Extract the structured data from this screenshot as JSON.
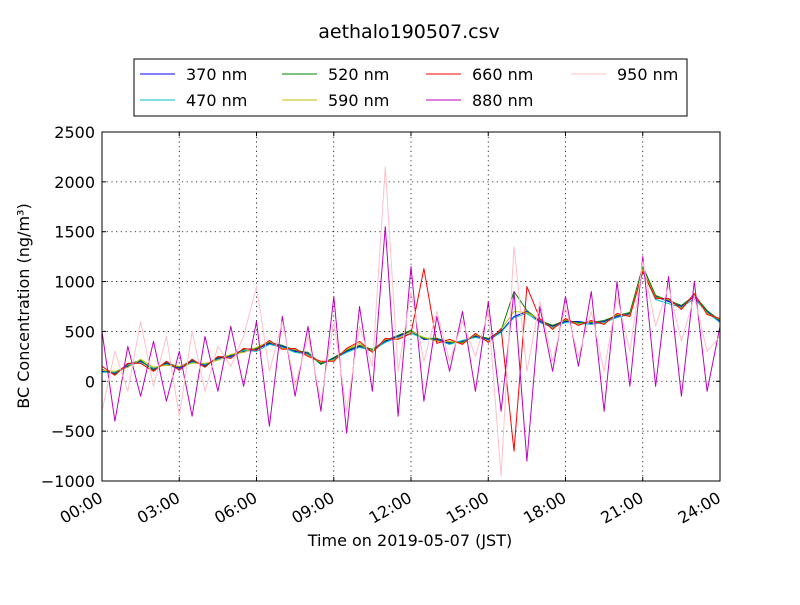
{
  "chart_data": {
    "type": "line",
    "title": "aethalo190507.csv",
    "xlabel": "Time on 2019-05-07 (JST)",
    "ylabel": "BC Concentration (ng/m³)",
    "xlim": [
      0,
      24
    ],
    "ylim": [
      -1000,
      2500
    ],
    "x_unit": "hours",
    "xticks": [
      0,
      3,
      6,
      9,
      12,
      15,
      18,
      21,
      24
    ],
    "xtick_labels": [
      "00:00",
      "03:00",
      "06:00",
      "09:00",
      "12:00",
      "15:00",
      "18:00",
      "21:00",
      "24:00"
    ],
    "yticks": [
      -1000,
      -500,
      0,
      500,
      1000,
      1500,
      2000,
      2500
    ],
    "ytick_labels": [
      "−1000",
      "−500",
      "0",
      "500",
      "1000",
      "1500",
      "2000",
      "2500"
    ],
    "grid": true,
    "legend_position": "top",
    "series": [
      {
        "name": "370 nm",
        "color": "#0000ff",
        "x": [
          0,
          0.5,
          1,
          1.5,
          2,
          2.5,
          3,
          3.5,
          4,
          4.5,
          5,
          5.5,
          6,
          6.5,
          7,
          7.5,
          8,
          8.5,
          9,
          9.5,
          10,
          10.5,
          11,
          11.5,
          12,
          12.5,
          13,
          13.5,
          14,
          14.5,
          15,
          15.5,
          16,
          16.5,
          17,
          17.5,
          18,
          18.5,
          19,
          19.5,
          20,
          20.5,
          21,
          21.5,
          22,
          22.5,
          23,
          23.5,
          24
        ],
        "y": [
          100,
          80,
          150,
          200,
          120,
          180,
          130,
          200,
          160,
          230,
          250,
          300,
          320,
          380,
          350,
          300,
          280,
          180,
          230,
          300,
          350,
          300,
          400,
          450,
          500,
          420,
          420,
          380,
          400,
          450,
          420,
          500,
          650,
          700,
          600,
          550,
          600,
          600,
          580,
          600,
          650,
          680,
          1150,
          850,
          800,
          750,
          850,
          700,
          600
        ]
      },
      {
        "name": "470 nm",
        "color": "#00c0c0",
        "x": [
          0,
          0.5,
          1,
          1.5,
          2,
          2.5,
          3,
          3.5,
          4,
          4.5,
          5,
          5.5,
          6,
          6.5,
          7,
          7.5,
          8,
          8.5,
          9,
          9.5,
          10,
          10.5,
          11,
          11.5,
          12,
          12.5,
          13,
          13.5,
          14,
          14.5,
          15,
          15.5,
          16,
          16.5,
          17,
          17.5,
          18,
          18.5,
          19,
          19.5,
          20,
          20.5,
          21,
          21.5,
          22,
          22.5,
          23,
          23.5,
          24
        ],
        "y": [
          90,
          90,
          160,
          190,
          130,
          170,
          120,
          190,
          170,
          220,
          240,
          310,
          300,
          370,
          340,
          290,
          270,
          170,
          220,
          290,
          340,
          310,
          390,
          440,
          480,
          430,
          410,
          370,
          410,
          440,
          410,
          490,
          640,
          680,
          590,
          540,
          590,
          580,
          570,
          590,
          640,
          670,
          1100,
          820,
          780,
          740,
          830,
          690,
          590
        ]
      },
      {
        "name": "520 nm",
        "color": "#008000",
        "x": [
          0,
          0.5,
          1,
          1.5,
          2,
          2.5,
          3,
          3.5,
          4,
          4.5,
          5,
          5.5,
          6,
          6.5,
          7,
          7.5,
          8,
          8.5,
          9,
          9.5,
          10,
          10.5,
          11,
          11.5,
          12,
          12.5,
          13,
          13.5,
          14,
          14.5,
          15,
          15.5,
          16,
          16.5,
          17,
          17.5,
          18,
          18.5,
          19,
          19.5,
          20,
          20.5,
          21,
          21.5,
          22,
          22.5,
          23,
          23.5,
          24
        ],
        "y": [
          120,
          70,
          170,
          210,
          110,
          190,
          140,
          210,
          150,
          240,
          260,
          320,
          330,
          390,
          360,
          310,
          290,
          170,
          240,
          310,
          360,
          320,
          410,
          460,
          510,
          430,
          430,
          390,
          390,
          460,
          430,
          510,
          900,
          710,
          610,
          560,
          610,
          590,
          590,
          610,
          660,
          690,
          1150,
          860,
          810,
          760,
          860,
          710,
          610
        ]
      },
      {
        "name": "590 nm",
        "color": "#bfbf00",
        "x": [
          0,
          0.5,
          1,
          1.5,
          2,
          2.5,
          3,
          3.5,
          4,
          4.5,
          5,
          5.5,
          6,
          6.5,
          7,
          7.5,
          8,
          8.5,
          9,
          9.5,
          10,
          10.5,
          11,
          11.5,
          12,
          12.5,
          13,
          13.5,
          14,
          14.5,
          15,
          15.5,
          16,
          16.5,
          17,
          17.5,
          18,
          18.5,
          19,
          19.5,
          20,
          20.5,
          21,
          21.5,
          22,
          22.5,
          23,
          23.5,
          24
        ],
        "y": [
          110,
          100,
          140,
          220,
          140,
          160,
          150,
          180,
          180,
          210,
          270,
          290,
          340,
          400,
          330,
          320,
          260,
          190,
          210,
          320,
          380,
          300,
          420,
          430,
          500,
          440,
          400,
          400,
          380,
          470,
          400,
          520,
          700,
          690,
          620,
          530,
          620,
          570,
          600,
          580,
          670,
          660,
          1120,
          840,
          820,
          730,
          870,
          680,
          620
        ]
      },
      {
        "name": "660 nm",
        "color": "#ff0000",
        "x": [
          0,
          0.5,
          1,
          1.5,
          2,
          2.5,
          3,
          3.5,
          4,
          4.5,
          5,
          5.5,
          6,
          6.5,
          7,
          7.5,
          8,
          8.5,
          9,
          9.5,
          10,
          10.5,
          11,
          11.5,
          12,
          12.5,
          13,
          13.5,
          14,
          14.5,
          15,
          15.5,
          16,
          16.5,
          17,
          17.5,
          18,
          18.5,
          19,
          19.5,
          20,
          20.5,
          21,
          21.5,
          22,
          22.5,
          23,
          23.5,
          24
        ],
        "y": [
          150,
          60,
          180,
          180,
          100,
          200,
          110,
          220,
          140,
          250,
          230,
          330,
          310,
          410,
          320,
          330,
          250,
          200,
          200,
          330,
          400,
          290,
          430,
          420,
          480,
          1130,
          380,
          420,
          370,
          480,
          390,
          530,
          -700,
          950,
          630,
          520,
          630,
          560,
          610,
          570,
          680,
          650,
          1100,
          830,
          830,
          720,
          880,
          670,
          630
        ]
      },
      {
        "name": "880 nm",
        "color": "#bf00bf",
        "x": [
          0,
          0.5,
          1,
          1.5,
          2,
          2.5,
          3,
          3.5,
          4,
          4.5,
          5,
          5.5,
          6,
          6.5,
          7,
          7.5,
          8,
          8.5,
          9,
          9.5,
          10,
          10.5,
          11,
          11.5,
          12,
          12.5,
          13,
          13.5,
          14,
          14.5,
          15,
          15.5,
          16,
          16.5,
          17,
          17.5,
          18,
          18.5,
          19,
          19.5,
          20,
          20.5,
          21,
          21.5,
          22,
          22.5,
          23,
          23.5,
          24
        ],
        "y": [
          500,
          -400,
          350,
          -150,
          400,
          -200,
          300,
          -350,
          450,
          -100,
          550,
          -50,
          600,
          -450,
          650,
          -150,
          550,
          -300,
          850,
          -520,
          750,
          -100,
          1550,
          -350,
          1150,
          -200,
          650,
          100,
          700,
          -100,
          800,
          -300,
          900,
          -800,
          750,
          100,
          850,
          150,
          900,
          -300,
          1000,
          -50,
          1250,
          -50,
          1050,
          -150,
          1000,
          -100,
          550
        ]
      },
      {
        "name": "950 nm",
        "color": "#ffc0cb",
        "x": [
          0,
          0.5,
          1,
          1.5,
          2,
          2.5,
          3,
          3.5,
          4,
          4.5,
          5,
          5.5,
          6,
          6.5,
          7,
          7.5,
          8,
          8.5,
          9,
          9.5,
          10,
          10.5,
          11,
          11.5,
          12,
          12.5,
          13,
          13.5,
          14,
          14.5,
          15,
          15.5,
          16,
          16.5,
          17,
          17.5,
          18,
          18.5,
          19,
          19.5,
          20,
          20.5,
          21,
          21.5,
          22,
          22.5,
          23,
          23.5,
          24
        ],
        "y": [
          -300,
          300,
          -100,
          600,
          -50,
          450,
          -350,
          500,
          -100,
          350,
          150,
          450,
          950,
          100,
          600,
          -50,
          450,
          -200,
          600,
          -300,
          550,
          150,
          2150,
          100,
          900,
          200,
          700,
          200,
          600,
          250,
          700,
          -950,
          1350,
          100,
          800,
          200,
          750,
          250,
          700,
          100,
          850,
          300,
          1200,
          550,
          950,
          400,
          850,
          300,
          450
        ]
      }
    ]
  }
}
